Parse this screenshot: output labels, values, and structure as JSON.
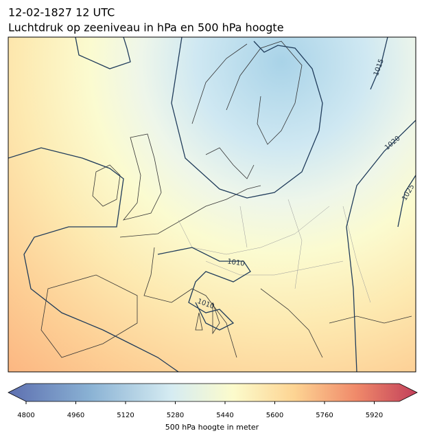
{
  "header": {
    "line1": "12-02-1827 12 UTC",
    "line2": "Luchtdruk op zeeniveau in hPa en 500 hPa hoogte"
  },
  "map": {
    "contour_labels": [
      "1015",
      "1020",
      "1025",
      "1010",
      "1010"
    ]
  },
  "colorbar": {
    "ticks": [
      4800,
      4960,
      5120,
      5280,
      5440,
      5600,
      5760,
      5920
    ],
    "label": "500 hPa hoogte in meter"
  }
}
